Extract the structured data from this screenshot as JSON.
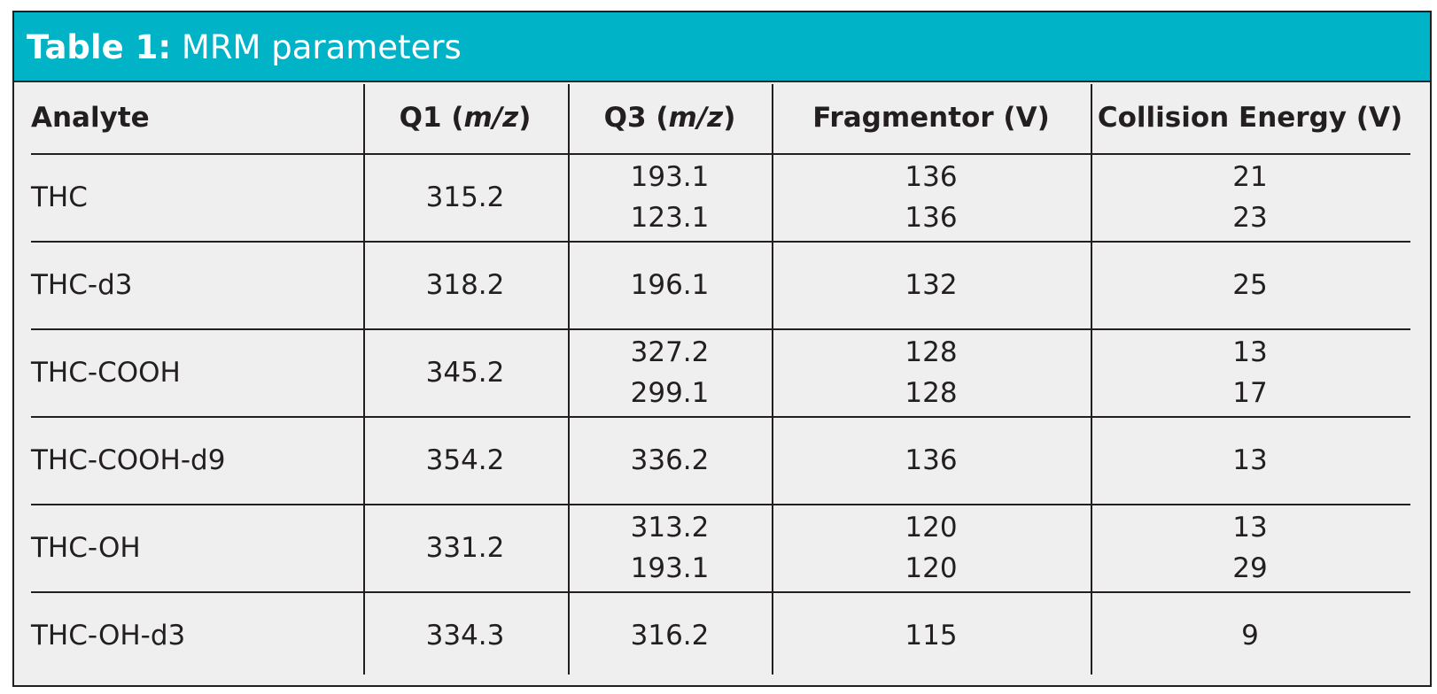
{
  "title": {
    "label": "Table 1:",
    "text": "MRM parameters"
  },
  "table": {
    "headers": [
      {
        "prefix": "Analyte"
      },
      {
        "prefix": "Q1 (",
        "italic": "m/z",
        "suffix": ")"
      },
      {
        "prefix": "Q3 (",
        "italic": "m/z",
        "suffix": ")"
      },
      {
        "prefix": "Fragmentor (V)"
      },
      {
        "prefix": "Collision Energy (V)"
      }
    ],
    "rows": [
      {
        "analyte": "THC",
        "q1": 315.2,
        "q3": [
          193.1,
          123.1
        ],
        "fragmentor": [
          136,
          136
        ],
        "collision_energy": [
          21,
          23
        ]
      },
      {
        "analyte": "THC-d3",
        "q1": 318.2,
        "q3": [
          196.1
        ],
        "fragmentor": [
          132
        ],
        "collision_energy": [
          25
        ]
      },
      {
        "analyte": "THC-COOH",
        "q1": 345.2,
        "q3": [
          327.2,
          299.1
        ],
        "fragmentor": [
          128,
          128
        ],
        "collision_energy": [
          13,
          17
        ]
      },
      {
        "analyte": "THC-COOH-d9",
        "q1": 354.2,
        "q3": [
          336.2
        ],
        "fragmentor": [
          136
        ],
        "collision_energy": [
          13
        ]
      },
      {
        "analyte": "THC-OH",
        "q1": 331.2,
        "q3": [
          313.2,
          193.1
        ],
        "fragmentor": [
          120,
          120
        ],
        "collision_energy": [
          13,
          29
        ]
      },
      {
        "analyte": "THC-OH-d3",
        "q1": 334.3,
        "q3": [
          316.2
        ],
        "fragmentor": [
          115
        ],
        "collision_energy": [
          9
        ]
      }
    ]
  }
}
